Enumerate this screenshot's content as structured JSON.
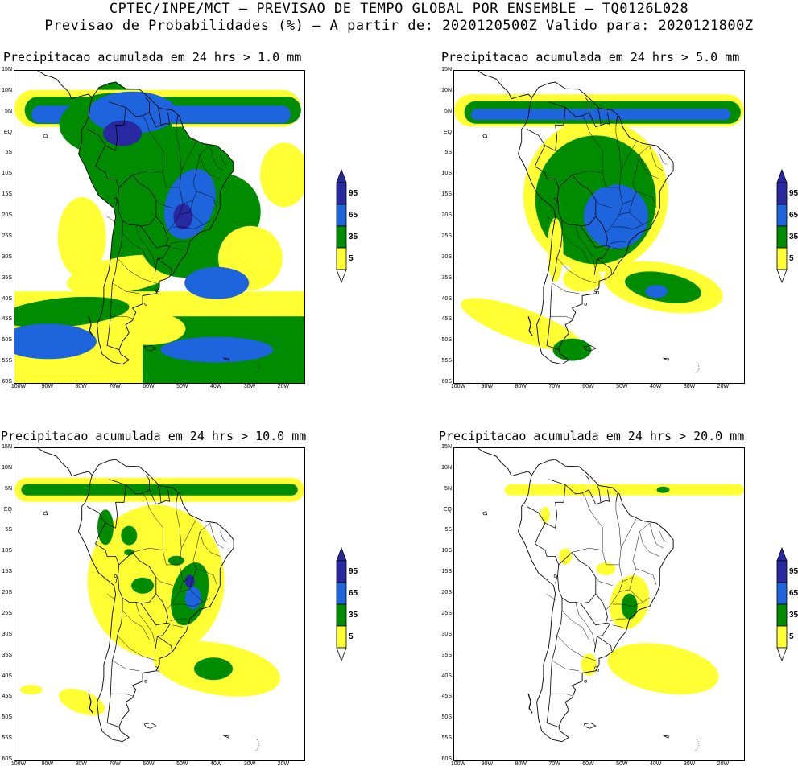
{
  "header": {
    "line1": "CPTEC/INPE/MCT — PREVISAO DE TEMPO GLOBAL POR ENSEMBLE — TQ0126L028",
    "line2": "Previsao de Probabilidades (%) —  A partir de: 2020120500Z  Valido para: 2020121800Z"
  },
  "colors": {
    "c5": "#ffff33",
    "c35": "#008c00",
    "c65": "#1e64dc",
    "c95": "#2828a0"
  },
  "lat_labels": [
    "15N",
    "10N",
    "5N",
    "EQ",
    "5S",
    "10S",
    "15S",
    "20S",
    "25S",
    "30S",
    "35S",
    "40S",
    "45S",
    "50S",
    "55S",
    "60S"
  ],
  "lon_labels": [
    "100W",
    "90W",
    "80W",
    "70W",
    "60W",
    "50W",
    "40W",
    "30W",
    "20W"
  ],
  "colorbar_labels": [
    "95",
    "65",
    "35",
    "5"
  ],
  "panels": [
    {
      "title": "Precipitacao acumulada em 24 hrs > 1.0 mm",
      "icon": "map-precip-1mm"
    },
    {
      "title": "Precipitacao acumulada em 24 hrs > 5.0 mm",
      "icon": "map-precip-5mm"
    },
    {
      "title": "Precipitacao acumulada em 24 hrs > 10.0 mm",
      "icon": "map-precip-10mm"
    },
    {
      "title": "Precipitacao acumulada em 24 hrs > 20.0 mm",
      "icon": "map-precip-20mm"
    }
  ]
}
